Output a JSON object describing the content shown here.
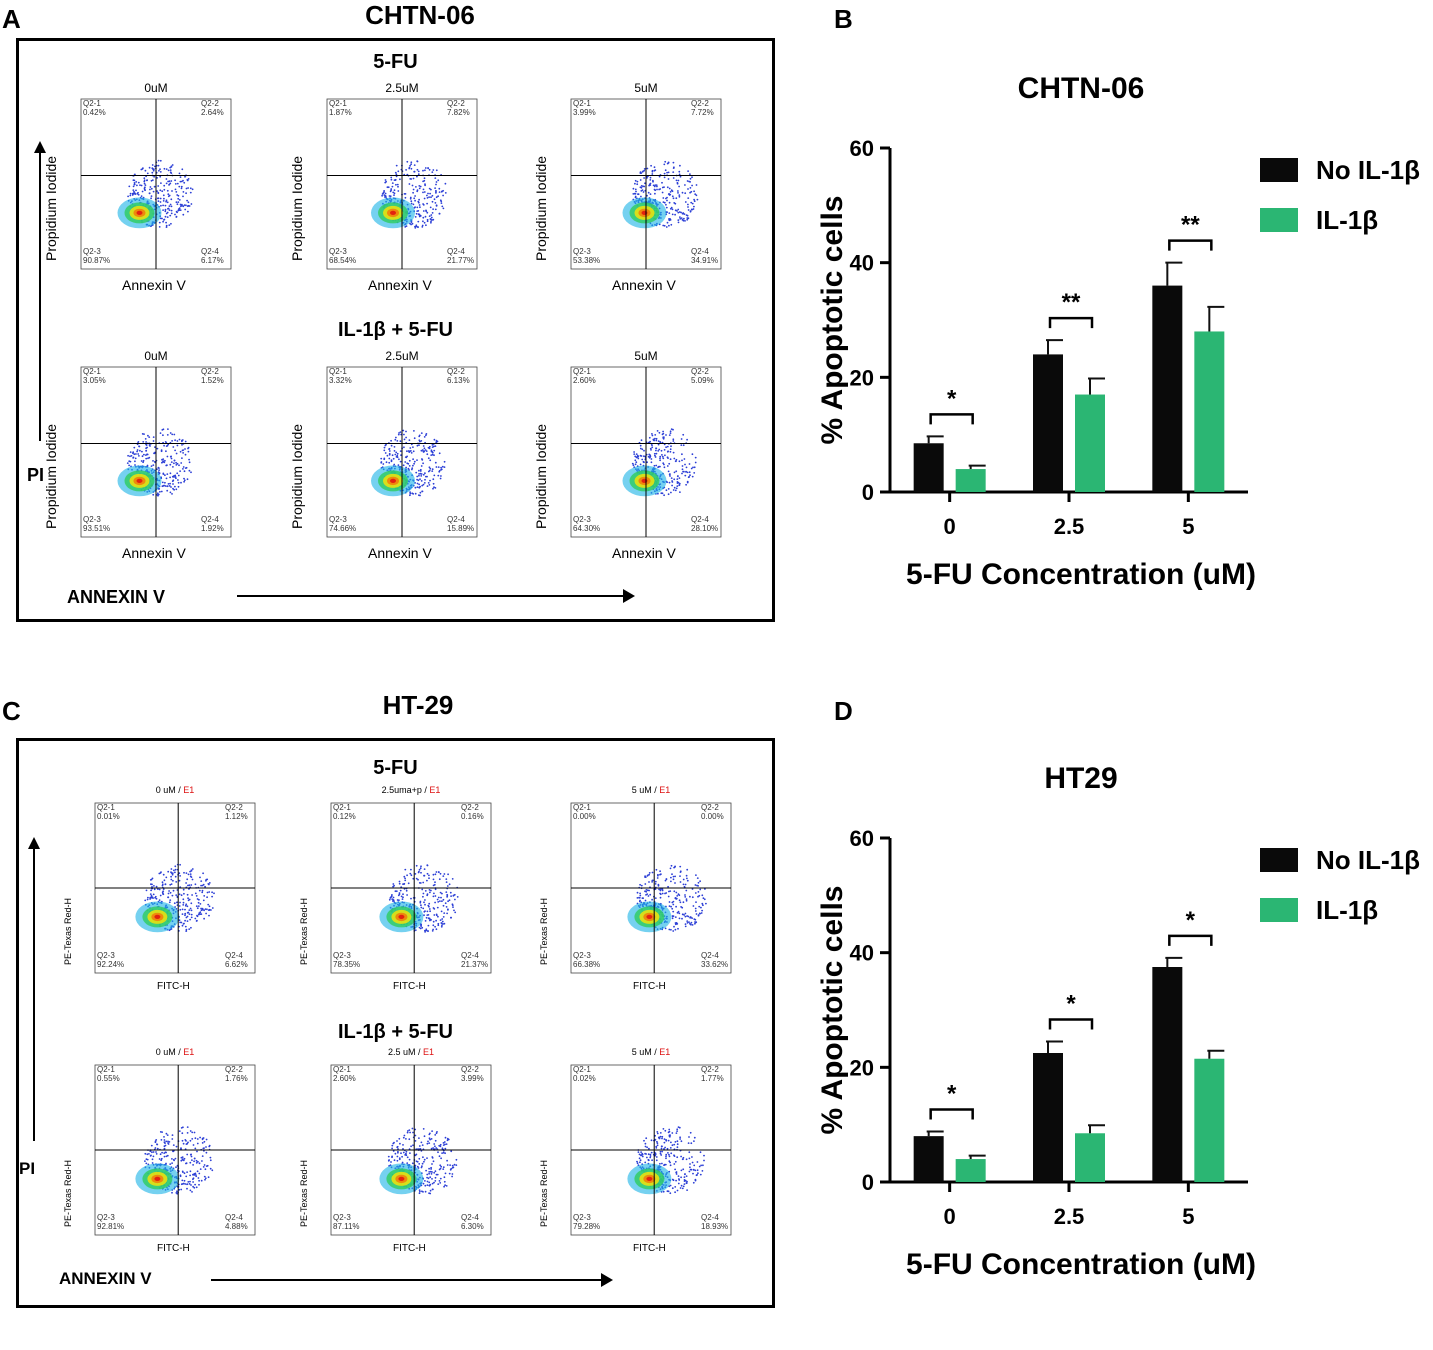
{
  "panels": {
    "A": {
      "letter": "A",
      "title": "CHTN-06",
      "row1": "5-FU",
      "row2": "IL-1β + 5-FU",
      "xaxis": "Annexin V",
      "yaxis": "Propidium Iodide",
      "pi": "PI",
      "annexin": "ANNEXIN V",
      "cols": [
        "0uM",
        "2.5uM",
        "5uM"
      ],
      "plots": [
        {
          "q1": "0.42%",
          "q2": "2.64%",
          "q3": "90.87%",
          "q4": "6.17%"
        },
        {
          "q1": "1.87%",
          "q2": "7.82%",
          "q3": "68.54%",
          "q4": "21.77%"
        },
        {
          "q1": "3.99%",
          "q2": "7.72%",
          "q3": "53.38%",
          "q4": "34.91%"
        },
        {
          "q1": "3.05%",
          "q2": "1.52%",
          "q3": "93.51%",
          "q4": "1.92%"
        },
        {
          "q1": "3.32%",
          "q2": "6.13%",
          "q3": "74.66%",
          "q4": "15.89%"
        },
        {
          "q1": "2.60%",
          "q2": "5.09%",
          "q3": "64.30%",
          "q4": "28.10%"
        }
      ]
    },
    "C": {
      "letter": "C",
      "title": "HT-29",
      "row1": "5-FU",
      "row2": "IL-1β + 5-FU",
      "xaxis": "FITC-H",
      "yaxis": "PE-Texas Red-H",
      "pi": "PI",
      "annexin": "ANNEXIN V",
      "cols": [
        "0 uM / E1",
        "2.5uma+p / E1",
        "5 uM / E1",
        "0 uM / E1",
        "2.5 uM / E1",
        "5 uM / E1"
      ],
      "plots": [
        {
          "q1": "0.01%",
          "q2": "1.12%",
          "q3": "92.24%",
          "q4": "6.62%"
        },
        {
          "q1": "0.12%",
          "q2": "0.16%",
          "q3": "78.35%",
          "q4": "21.37%"
        },
        {
          "q1": "0.00%",
          "q2": "0.00%",
          "q3": "66.38%",
          "q4": "33.62%"
        },
        {
          "q1": "0.55%",
          "q2": "1.76%",
          "q3": "92.81%",
          "q4": "4.88%"
        },
        {
          "q1": "2.60%",
          "q2": "3.99%",
          "q3": "87.11%",
          "q4": "6.30%"
        },
        {
          "q1": "0.02%",
          "q2": "1.77%",
          "q3": "79.28%",
          "q4": "18.93%"
        }
      ]
    },
    "B": {
      "letter": "B"
    },
    "D": {
      "letter": "D"
    }
  },
  "chart_data": [
    {
      "type": "bar",
      "title": "CHTN-06",
      "categories": [
        "0",
        "2.5",
        "5"
      ],
      "series": [
        {
          "name": "No IL-1β",
          "color": "#0a0a0a",
          "values": [
            8.5,
            24,
            36
          ],
          "errors": [
            1.2,
            2.5,
            4.0
          ]
        },
        {
          "name": "IL-1β",
          "color": "#2bb673",
          "values": [
            4,
            17,
            28
          ],
          "errors": [
            0.6,
            2.8,
            4.3
          ]
        }
      ],
      "significance": [
        "*",
        "**",
        "**"
      ],
      "xlabel": "5-FU Concentration (uM)",
      "ylabel": "% Apoptotic cells",
      "ylim": [
        0,
        60
      ],
      "yticks": [
        0,
        20,
        40,
        60
      ]
    },
    {
      "type": "bar",
      "title": "HT29",
      "categories": [
        "0",
        "2.5",
        "5"
      ],
      "series": [
        {
          "name": "No IL-1β",
          "color": "#0a0a0a",
          "values": [
            8,
            22.5,
            37.5
          ],
          "errors": [
            0.8,
            2.0,
            1.6
          ]
        },
        {
          "name": "IL-1β",
          "color": "#2bb673",
          "values": [
            4,
            8.5,
            21.5
          ],
          "errors": [
            0.6,
            1.4,
            1.4
          ]
        }
      ],
      "significance": [
        "*",
        "*",
        "*"
      ],
      "xlabel": "5-FU Concentration (uM)",
      "ylabel": "% Apoptotic cells",
      "ylim": [
        0,
        60
      ],
      "yticks": [
        0,
        20,
        40,
        60
      ]
    }
  ]
}
